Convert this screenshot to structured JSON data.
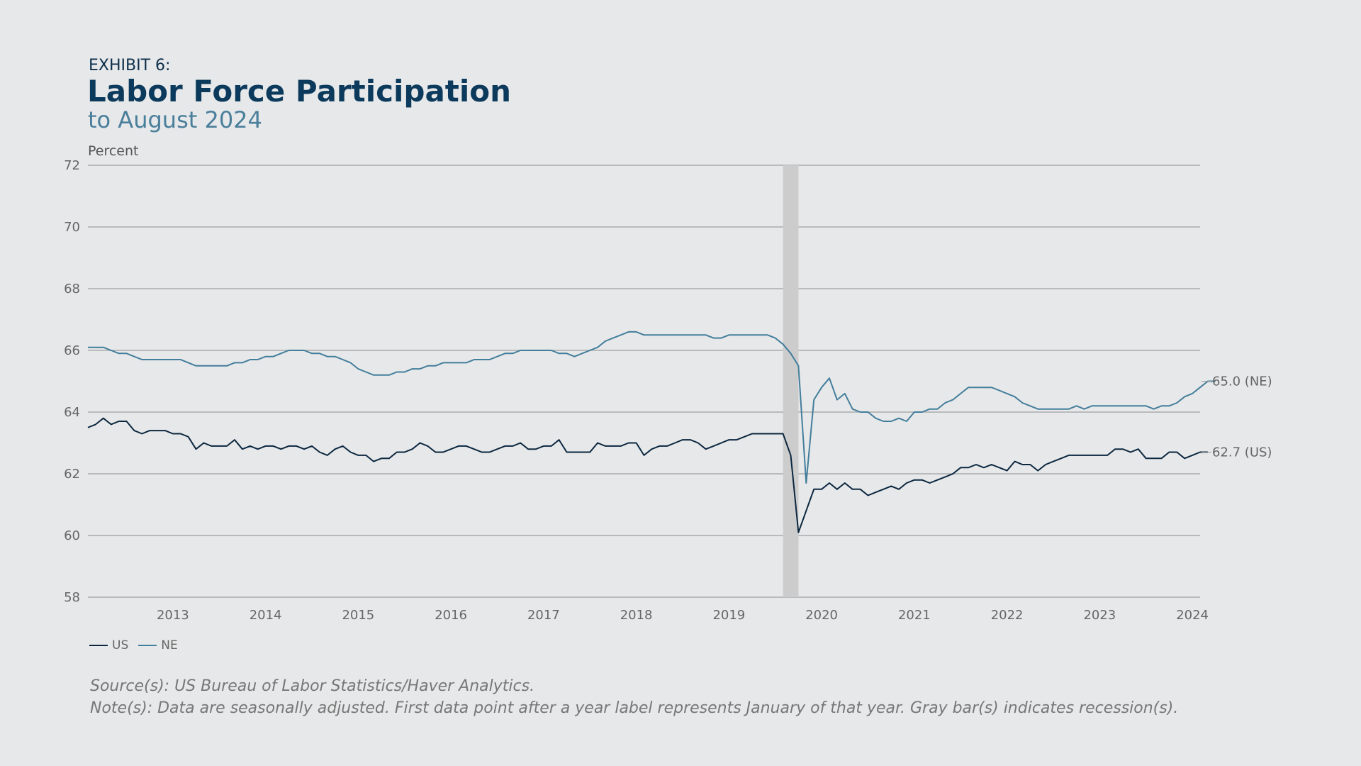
{
  "header": {
    "exhibit": "EXHIBIT 6:",
    "title": "Labor Force Participation",
    "subtitle": "to August 2024"
  },
  "footer": {
    "source": "Source(s): US Bureau of Labor Statistics/Haver Analytics.",
    "note": "Note(s): Data are seasonally adjusted. First data point after a year label represents January of that year. Gray bar(s) indicates recession(s)."
  },
  "chart_data": {
    "type": "line",
    "ylabel": "Percent",
    "ylim": [
      58,
      72
    ],
    "yticks": [
      "58",
      "60",
      "62",
      "64",
      "66",
      "68",
      "70",
      "72"
    ],
    "xticks": [
      "2013",
      "2014",
      "2015",
      "2016",
      "2017",
      "2018",
      "2019",
      "2020",
      "2021",
      "2022",
      "2023",
      "2024"
    ],
    "x_start": "2012-08",
    "x_end": "2024-08",
    "grid": true,
    "legend_position": "bottom-left",
    "recession": {
      "start": "2020-02",
      "end": "2020-04",
      "color": "#cccccc"
    },
    "series": [
      {
        "name": "US",
        "color": "#0b2740",
        "end_label": "62.7 (US)",
        "values": [
          63.5,
          63.6,
          63.8,
          63.6,
          63.7,
          63.7,
          63.4,
          63.3,
          63.4,
          63.4,
          63.4,
          63.3,
          63.3,
          63.2,
          62.8,
          63.0,
          62.9,
          62.9,
          62.9,
          63.1,
          62.8,
          62.9,
          62.8,
          62.9,
          62.9,
          62.8,
          62.9,
          62.9,
          62.8,
          62.9,
          62.7,
          62.6,
          62.8,
          62.9,
          62.7,
          62.6,
          62.6,
          62.4,
          62.5,
          62.5,
          62.7,
          62.7,
          62.8,
          63.0,
          62.9,
          62.7,
          62.7,
          62.8,
          62.9,
          62.9,
          62.8,
          62.7,
          62.7,
          62.8,
          62.9,
          62.9,
          63.0,
          62.8,
          62.8,
          62.9,
          62.9,
          63.1,
          62.7,
          62.7,
          62.7,
          62.7,
          63.0,
          62.9,
          62.9,
          62.9,
          63.0,
          63.0,
          62.6,
          62.8,
          62.9,
          62.9,
          63.0,
          63.1,
          63.1,
          63.0,
          62.8,
          62.9,
          63.0,
          63.1,
          63.1,
          63.2,
          63.3,
          63.3,
          63.3,
          63.3,
          63.3,
          62.6,
          60.1,
          60.8,
          61.5,
          61.5,
          61.7,
          61.5,
          61.7,
          61.5,
          61.5,
          61.3,
          61.4,
          61.5,
          61.6,
          61.5,
          61.7,
          61.8,
          61.8,
          61.7,
          61.8,
          61.9,
          62.0,
          62.2,
          62.2,
          62.3,
          62.2,
          62.3,
          62.2,
          62.1,
          62.4,
          62.3,
          62.3,
          62.1,
          62.3,
          62.4,
          62.5,
          62.6,
          62.6,
          62.6,
          62.6,
          62.6,
          62.6,
          62.8,
          62.8,
          62.7,
          62.8,
          62.5,
          62.5,
          62.5,
          62.7,
          62.7,
          62.5,
          62.6,
          62.7,
          62.7
        ]
      },
      {
        "name": "NE",
        "color": "#437e9c",
        "end_label": "65.0 (NE)",
        "values": [
          66.1,
          66.1,
          66.1,
          66.0,
          65.9,
          65.9,
          65.8,
          65.7,
          65.7,
          65.7,
          65.7,
          65.7,
          65.7,
          65.6,
          65.5,
          65.5,
          65.5,
          65.5,
          65.5,
          65.6,
          65.6,
          65.7,
          65.7,
          65.8,
          65.8,
          65.9,
          66.0,
          66.0,
          66.0,
          65.9,
          65.9,
          65.8,
          65.8,
          65.7,
          65.6,
          65.4,
          65.3,
          65.2,
          65.2,
          65.2,
          65.3,
          65.3,
          65.4,
          65.4,
          65.5,
          65.5,
          65.6,
          65.6,
          65.6,
          65.6,
          65.7,
          65.7,
          65.7,
          65.8,
          65.9,
          65.9,
          66.0,
          66.0,
          66.0,
          66.0,
          66.0,
          65.9,
          65.9,
          65.8,
          65.9,
          66.0,
          66.1,
          66.3,
          66.4,
          66.5,
          66.6,
          66.6,
          66.5,
          66.5,
          66.5,
          66.5,
          66.5,
          66.5,
          66.5,
          66.5,
          66.5,
          66.4,
          66.4,
          66.5,
          66.5,
          66.5,
          66.5,
          66.5,
          66.5,
          66.4,
          66.2,
          65.9,
          65.5,
          61.7,
          64.4,
          64.8,
          65.1,
          64.4,
          64.6,
          64.1,
          64.0,
          64.0,
          63.8,
          63.7,
          63.7,
          63.8,
          63.7,
          64.0,
          64.0,
          64.1,
          64.1,
          64.3,
          64.4,
          64.6,
          64.8,
          64.8,
          64.8,
          64.8,
          64.7,
          64.6,
          64.5,
          64.3,
          64.2,
          64.1,
          64.1,
          64.1,
          64.1,
          64.1,
          64.2,
          64.1,
          64.2,
          64.2,
          64.2,
          64.2,
          64.2,
          64.2,
          64.2,
          64.2,
          64.1,
          64.2,
          64.2,
          64.3,
          64.5,
          64.6,
          64.8,
          65.0,
          65.0
        ]
      }
    ]
  }
}
